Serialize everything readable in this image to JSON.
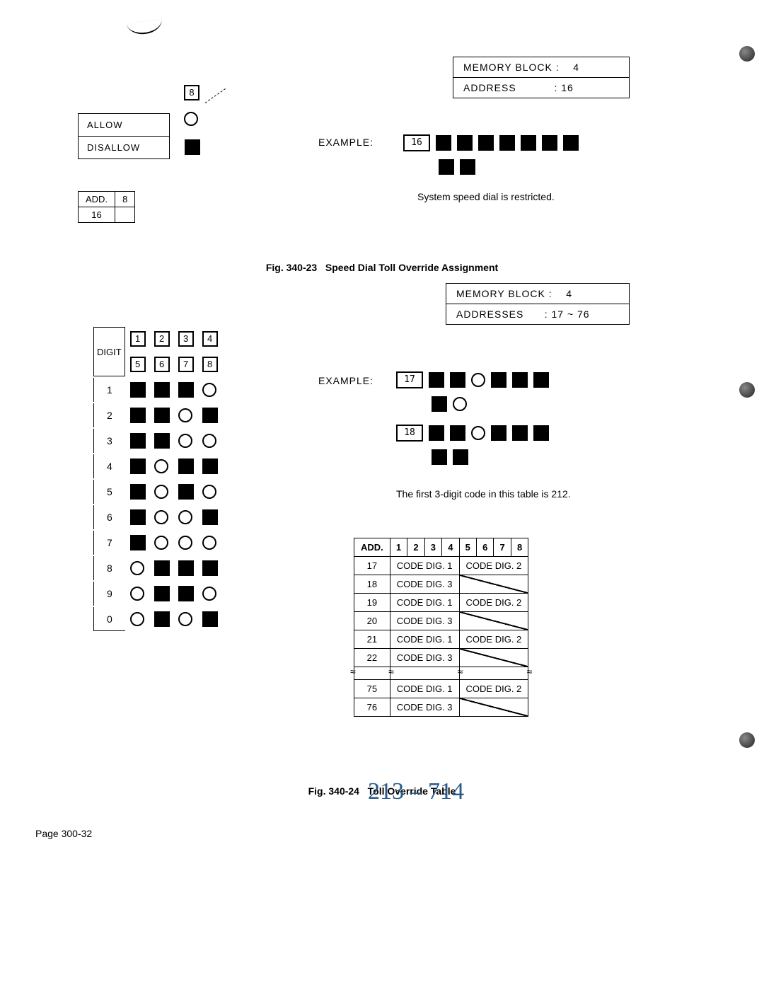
{
  "fig1": {
    "memory_block_label": "MEMORY BLOCK :",
    "memory_block_value": "4",
    "address_label": "ADDRESS",
    "address_value": ":   16",
    "col_header": "8",
    "allow": "ALLOW",
    "disallow": "DISALLOW",
    "example_label": "EXAMPLE:",
    "add_table": {
      "header": "ADD.",
      "col": "8",
      "row": "16"
    },
    "disp1": "16",
    "restrict_note": "System speed dial is restricted.",
    "caption_no": "Fig. 340-23",
    "caption_text": "Speed Dial Toll Override Assignment"
  },
  "fig2": {
    "memory_block_label": "MEMORY BLOCK :",
    "memory_block_value": "4",
    "addresses_label": "ADDRESSES",
    "addresses_value": ":  17 ~ 76",
    "digit_label": "DIGIT",
    "col_nums": [
      "1",
      "2",
      "3",
      "4",
      "5",
      "6",
      "7",
      "8"
    ],
    "rows": [
      {
        "n": "1",
        "cells": [
          "f",
          "f",
          "f",
          "e"
        ]
      },
      {
        "n": "2",
        "cells": [
          "f",
          "f",
          "e",
          "f"
        ]
      },
      {
        "n": "3",
        "cells": [
          "f",
          "f",
          "e",
          "e"
        ]
      },
      {
        "n": "4",
        "cells": [
          "f",
          "e",
          "f",
          "f"
        ]
      },
      {
        "n": "5",
        "cells": [
          "f",
          "e",
          "f",
          "e"
        ]
      },
      {
        "n": "6",
        "cells": [
          "f",
          "e",
          "e",
          "f"
        ]
      },
      {
        "n": "7",
        "cells": [
          "f",
          "e",
          "e",
          "e"
        ]
      },
      {
        "n": "8",
        "cells": [
          "e",
          "f",
          "f",
          "f"
        ]
      },
      {
        "n": "9",
        "cells": [
          "e",
          "f",
          "f",
          "e"
        ]
      },
      {
        "n": "0",
        "cells": [
          "e",
          "f",
          "e",
          "f"
        ]
      }
    ],
    "example_label": "EXAMPLE:",
    "disp_a": "17",
    "disp_b": "18",
    "row_a": [
      "f",
      "f",
      "e",
      "f",
      "f",
      "f"
    ],
    "row_a2": [
      "f",
      "e"
    ],
    "row_b": [
      "f",
      "f",
      "e",
      "f",
      "f",
      "f"
    ],
    "row_b2": [
      "f",
      "f"
    ],
    "table_note": "The first 3-digit code in this table is 212.",
    "code_table": {
      "headers": [
        "ADD.",
        "1",
        "2",
        "3",
        "4",
        "5",
        "6",
        "7",
        "8"
      ],
      "rows": [
        {
          "add": "17",
          "l": "CODE DIG. 1",
          "r": "CODE DIG. 2"
        },
        {
          "add": "18",
          "l": "CODE DIG. 3",
          "r": "diag"
        },
        {
          "add": "19",
          "l": "CODE DIG. 1",
          "r": "CODE DIG. 2"
        },
        {
          "add": "20",
          "l": "CODE DIG. 3",
          "r": "diag"
        },
        {
          "add": "21",
          "l": "CODE DIG. 1",
          "r": "CODE DIG. 2"
        },
        {
          "add": "22",
          "l": "CODE DIG. 3",
          "r": "diag"
        }
      ],
      "tail": [
        {
          "add": "75",
          "l": "CODE DIG. 1",
          "r": "CODE DIG. 2"
        },
        {
          "add": "76",
          "l": "CODE DIG. 3",
          "r": "diag"
        }
      ]
    },
    "caption_no": "Fig. 340-24",
    "caption_text": "Toll Override Table",
    "handwritten": "213 – 714"
  },
  "page_number": "Page 300-32"
}
